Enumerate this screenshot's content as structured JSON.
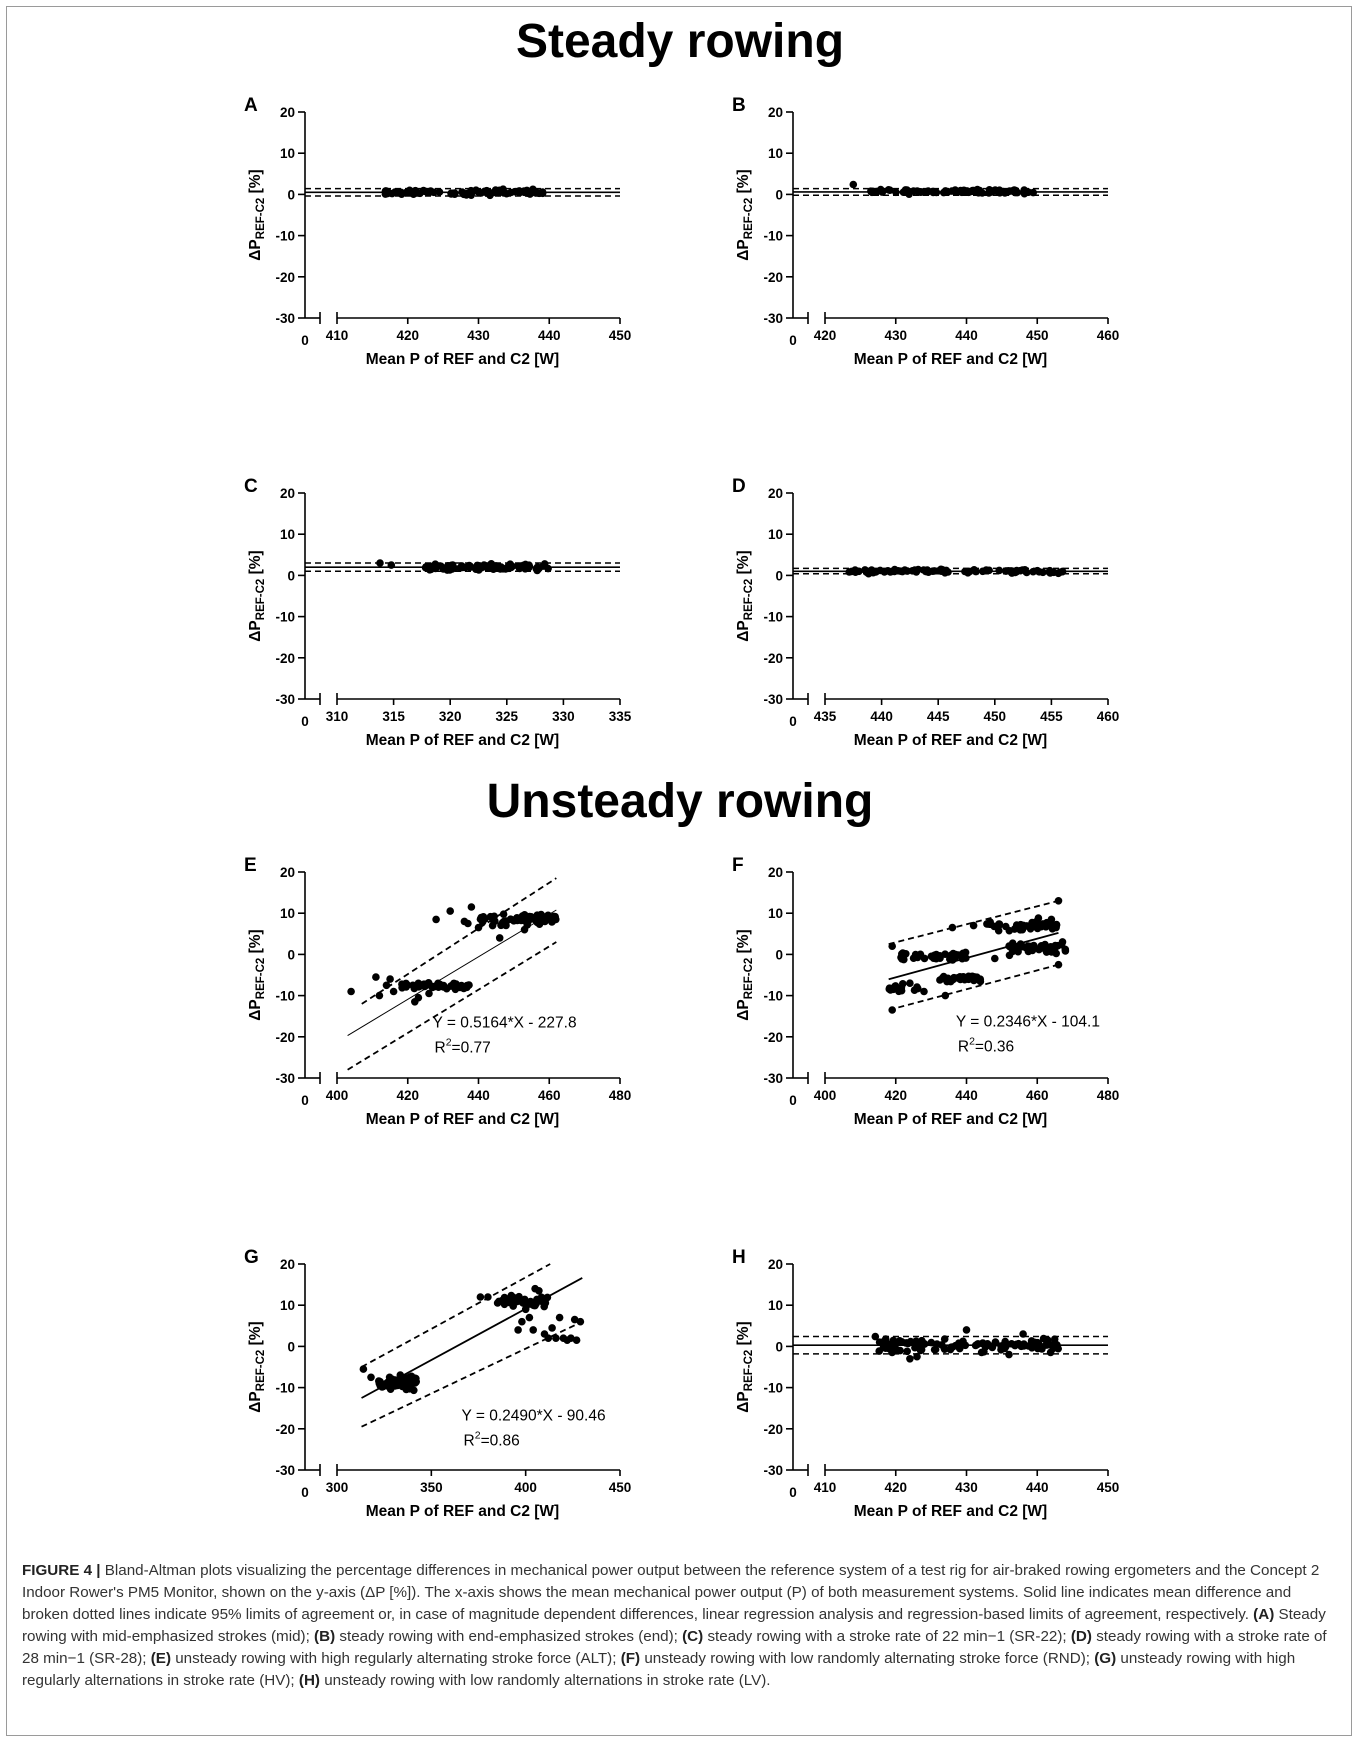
{
  "sections": {
    "steady_title": "Steady rowing",
    "unsteady_title": "Unsteady rowing"
  },
  "caption": {
    "label": "FIGURE 4 |",
    "text": "Bland-Altman plots visualizing the percentage differences in mechanical power output between the reference system of a test rig for air-braked rowing ergometers and the Concept 2 Indoor Rower's PM5 Monitor, shown on the y-axis (ΔP [%]). The x-axis shows the mean mechanical power output (P) of both measurement systems. Solid line indicates mean difference and broken dotted lines indicate 95% limits of agreement or, in case of magnitude dependent differences, linear regression analysis and regression-based limits of agreement, respectively.",
    "parts": [
      {
        "tag": "(A)",
        "text": "Steady rowing with mid-emphasized strokes (mid);"
      },
      {
        "tag": "(B)",
        "text": "steady rowing with end-emphasized strokes (end);"
      },
      {
        "tag": "(C)",
        "text": "steady rowing with a stroke rate of 22 min−1 (SR-22);"
      },
      {
        "tag": "(D)",
        "text": "steady rowing with a stroke rate of 28 min−1 (SR-28);"
      },
      {
        "tag": "(E)",
        "text": "unsteady rowing with high regularly alternating stroke force (ALT);"
      },
      {
        "tag": "(F)",
        "text": "unsteady rowing with low randomly alternating stroke force (RND);"
      },
      {
        "tag": "(G)",
        "text": "unsteady rowing with high regularly alternations in stroke rate (HV);"
      },
      {
        "tag": "(H)",
        "text": "unsteady rowing with low randomly alternations in stroke rate (LV)."
      }
    ]
  },
  "colors": {
    "ink": "#000000",
    "caption": "#333333"
  },
  "chart_data": [
    {
      "panel": "A",
      "type": "scatter",
      "kind": "bland-altman",
      "xlabel": "Mean P of REF and C2 [W]",
      "ylabel_main": "ΔP",
      "ylabel_sub": "REF-C2",
      "ylabel_unit": " [%]",
      "xlim": [
        410,
        450
      ],
      "ylim": [
        -30,
        20
      ],
      "x_break_label": "0",
      "xticks": [
        410,
        420,
        430,
        440,
        450
      ],
      "yticks": [
        -30,
        -20,
        -10,
        0,
        10,
        20
      ],
      "mean_diff": 0.5,
      "loa": [
        -0.4,
        1.4
      ],
      "clusters": [
        [
          416.5,
          440,
          0.5,
          0.35,
          80
        ]
      ]
    },
    {
      "panel": "B",
      "type": "scatter",
      "kind": "bland-altman",
      "xlabel": "Mean P of REF and C2 [W]",
      "ylabel_main": "ΔP",
      "ylabel_sub": "REF-C2",
      "ylabel_unit": " [%]",
      "xlim": [
        420,
        460
      ],
      "ylim": [
        -30,
        20
      ],
      "x_break_label": "0",
      "xticks": [
        420,
        430,
        440,
        450,
        460
      ],
      "yticks": [
        -30,
        -20,
        -10,
        0,
        10,
        20
      ],
      "mean_diff": 0.6,
      "loa": [
        -0.2,
        1.4
      ],
      "clusters": [
        [
          426,
          450,
          0.7,
          0.3,
          80
        ]
      ],
      "points": [
        [
          424,
          2.4
        ]
      ]
    },
    {
      "panel": "C",
      "type": "scatter",
      "kind": "bland-altman",
      "xlabel": "Mean P of REF and C2 [W]",
      "ylabel_main": "ΔP",
      "ylabel_sub": "REF-C2",
      "ylabel_unit": " [%]",
      "xlim": [
        310,
        335
      ],
      "ylim": [
        -30,
        20
      ],
      "x_break_label": "0",
      "xticks": [
        310,
        315,
        320,
        325,
        330,
        335
      ],
      "yticks": [
        -30,
        -20,
        -10,
        0,
        10,
        20
      ],
      "mean_diff": 2.0,
      "loa": [
        1.0,
        3.0
      ],
      "clusters": [
        [
          317.8,
          328.8,
          2.0,
          0.45,
          90
        ]
      ],
      "points": [
        [
          313.8,
          3.0
        ],
        [
          314.8,
          2.5
        ]
      ]
    },
    {
      "panel": "D",
      "type": "scatter",
      "kind": "bland-altman",
      "xlabel": "Mean P of REF and C2 [W]",
      "ylabel_main": "ΔP",
      "ylabel_sub": "REF-C2",
      "ylabel_unit": " [%]",
      "xlim": [
        435,
        460
      ],
      "ylim": [
        -30,
        20
      ],
      "x_break_label": "0",
      "xticks": [
        435,
        440,
        445,
        450,
        455,
        460
      ],
      "yticks": [
        -30,
        -20,
        -10,
        0,
        10,
        20
      ],
      "mean_diff": 1.0,
      "loa": [
        0.4,
        1.7
      ],
      "clusters": [
        [
          437,
          456.5,
          1.0,
          0.3,
          80
        ]
      ]
    },
    {
      "panel": "E",
      "type": "scatter",
      "kind": "regression",
      "xlabel": "Mean P of REF and C2 [W]",
      "ylabel_main": "ΔP",
      "ylabel_sub": "REF-C2",
      "ylabel_unit": " [%]",
      "xlim": [
        400,
        480
      ],
      "ylim": [
        -30,
        20
      ],
      "x_break_label": "0",
      "xticks": [
        400,
        420,
        440,
        460,
        480
      ],
      "yticks": [
        -30,
        -20,
        -10,
        0,
        10,
        20
      ],
      "equation": "Y = 0.5164*X - 227.8",
      "r2_prefix": "R",
      "r2_sup": "2",
      "r2_suffix": "=0.77",
      "annotation_pos": [
        427,
        -17.8
      ],
      "fit": {
        "slope": 0.5164,
        "intercept": -227.8,
        "x_range": [
          403,
          462
        ],
        "thin": true
      },
      "loa_lines": [
        [
          [
            407,
            -12
          ],
          [
            462,
            18.5
          ]
        ],
        [
          [
            403,
            -28
          ],
          [
            462,
            3
          ]
        ]
      ],
      "clusters": [
        [
          418,
          438,
          -7.6,
          0.5,
          45
        ],
        [
          440,
          462,
          8.6,
          0.8,
          55
        ]
      ],
      "points": [
        [
          404,
          -9
        ],
        [
          411,
          -5.5
        ],
        [
          412,
          -10
        ],
        [
          414,
          -7.5
        ],
        [
          415,
          -6
        ],
        [
          416,
          -9
        ],
        [
          422,
          -11.5
        ],
        [
          423,
          -10.5
        ],
        [
          426,
          -9.5
        ],
        [
          428,
          8.5
        ],
        [
          432,
          10.5
        ],
        [
          436,
          8
        ],
        [
          437,
          7.5
        ],
        [
          438,
          11.5
        ],
        [
          440,
          6.5
        ],
        [
          441,
          8.5
        ],
        [
          446,
          4
        ],
        [
          444,
          7
        ],
        [
          453,
          6
        ]
      ]
    },
    {
      "panel": "F",
      "type": "scatter",
      "kind": "regression",
      "xlabel": "Mean P of REF and C2 [W]",
      "ylabel_main": "ΔP",
      "ylabel_sub": "REF-C2",
      "ylabel_unit": " [%]",
      "xlim": [
        400,
        480
      ],
      "ylim": [
        -30,
        20
      ],
      "x_break_label": "0",
      "xticks": [
        400,
        420,
        440,
        460,
        480
      ],
      "yticks": [
        -30,
        -20,
        -10,
        0,
        10,
        20
      ],
      "equation": "Y = 0.2346*X - 104.1",
      "r2_prefix": "R",
      "r2_sup": "2",
      "r2_suffix": "=0.36",
      "annotation_pos": [
        437,
        -17.5
      ],
      "fit": {
        "slope": 0.2346,
        "intercept": -104.1,
        "x_range": [
          418,
          466
        ],
        "thin": false
      },
      "loa_lines": [
        [
          [
            418,
            2.5
          ],
          [
            466,
            13
          ]
        ],
        [
          [
            418,
            -13.5
          ],
          [
            466,
            -2.5
          ]
        ]
      ],
      "clusters": [
        [
          420,
          440,
          -0.5,
          0.6,
          45
        ],
        [
          430,
          445,
          -5.8,
          0.6,
          35
        ],
        [
          445,
          466,
          7.0,
          0.9,
          45
        ],
        [
          452,
          468,
          1.5,
          0.9,
          40
        ],
        [
          418,
          428,
          -8.0,
          0.6,
          15
        ]
      ],
      "points": [
        [
          419,
          2
        ],
        [
          419,
          -13.5
        ],
        [
          424,
          -7
        ],
        [
          428,
          -9
        ],
        [
          434,
          -10
        ],
        [
          466,
          13
        ],
        [
          464,
          8.5
        ],
        [
          466,
          -2.5
        ],
        [
          436,
          6.5
        ],
        [
          442,
          7
        ],
        [
          448,
          -1
        ]
      ]
    },
    {
      "panel": "G",
      "type": "scatter",
      "kind": "regression",
      "xlabel": "Mean P of REF and C2 [W]",
      "ylabel_main": "ΔP",
      "ylabel_sub": "REF-C2",
      "ylabel_unit": " [%]",
      "xlim": [
        300,
        450
      ],
      "ylim": [
        -30,
        20
      ],
      "x_break_label": "0",
      "xticks": [
        300,
        350,
        400,
        450
      ],
      "yticks": [
        -30,
        -20,
        -10,
        0,
        10,
        20
      ],
      "equation": "Y = 0.2490*X - 90.46",
      "r2_prefix": "R",
      "r2_sup": "2",
      "r2_suffix": "=0.86",
      "annotation_pos": [
        366,
        -18
      ],
      "fit": {
        "slope": 0.249,
        "intercept": -90.46,
        "x_range": [
          313,
          430
        ],
        "thin": false
      },
      "loa_lines": [
        [
          [
            313,
            -5
          ],
          [
            413,
            20
          ]
        ],
        [
          [
            313,
            -19.5
          ],
          [
            430,
            6
          ]
        ]
      ],
      "clusters": [
        [
          322,
          342,
          -8.8,
          1.0,
          55
        ],
        [
          385,
          412,
          11.0,
          0.8,
          45
        ]
      ],
      "points": [
        [
          314,
          -5.5
        ],
        [
          318,
          -7.5
        ],
        [
          376,
          12
        ],
        [
          380,
          12
        ],
        [
          396,
          4
        ],
        [
          398,
          6
        ],
        [
          400,
          9
        ],
        [
          402,
          7
        ],
        [
          404,
          4
        ],
        [
          410,
          3
        ],
        [
          412,
          2
        ],
        [
          414,
          4.5
        ],
        [
          416,
          2
        ],
        [
          418,
          7
        ],
        [
          420,
          2
        ],
        [
          422,
          1.5
        ],
        [
          424,
          2
        ],
        [
          426,
          6.5
        ],
        [
          429,
          6
        ],
        [
          427,
          1.5
        ],
        [
          405,
          14
        ],
        [
          407,
          13.5
        ]
      ]
    },
    {
      "panel": "H",
      "type": "scatter",
      "kind": "bland-altman",
      "xlabel": "Mean P of REF and C2 [W]",
      "ylabel_main": "ΔP",
      "ylabel_sub": "REF-C2",
      "ylabel_unit": " [%]",
      "xlim": [
        410,
        450
      ],
      "ylim": [
        -30,
        20
      ],
      "x_break_label": "0",
      "xticks": [
        410,
        420,
        430,
        440,
        450
      ],
      "yticks": [
        -30,
        -20,
        -10,
        0,
        10,
        20
      ],
      "mean_diff": 0.3,
      "loa": [
        -1.8,
        2.4
      ],
      "clusters": [
        [
          417,
          443,
          0.3,
          1.1,
          110
        ]
      ],
      "points": [
        [
          422,
          -3
        ],
        [
          423,
          -2.5
        ],
        [
          430,
          4
        ],
        [
          436,
          -2
        ],
        [
          438,
          3
        ]
      ]
    }
  ]
}
